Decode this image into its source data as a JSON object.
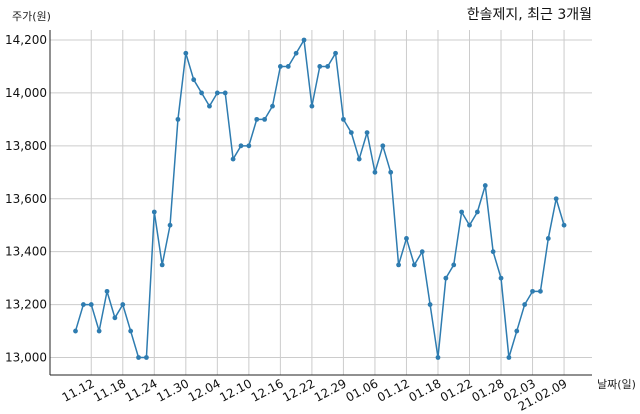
{
  "chart_data": {
    "type": "line",
    "title": "한솔제지, 최근 3개월",
    "ylabel": "주가(원)",
    "xlabel": "날짜(일)",
    "ylim": [
      12940,
      14270
    ],
    "yticks": [
      13000,
      13200,
      13400,
      13600,
      13800,
      14000,
      14200
    ],
    "ytick_labels": [
      "13,000",
      "13,200",
      "13,400",
      "13,600",
      "13,800",
      "14,000",
      "14,200"
    ],
    "xticks": [
      2,
      6,
      10,
      14,
      18,
      22,
      26,
      30,
      34,
      38,
      42,
      46,
      50,
      54,
      58,
      62
    ],
    "xtick_labels": [
      "11.12",
      "11.18",
      "11.24",
      "11.30",
      "12.04",
      "12.10",
      "12.16",
      "12.22",
      "12.29",
      "01.06",
      "01.12",
      "01.18",
      "01.22",
      "01.28",
      "02.03",
      "21.02.09"
    ],
    "grid": true,
    "color": "#2e7cb0",
    "values": [
      13100,
      13200,
      13200,
      13100,
      13250,
      13150,
      13200,
      13100,
      13000,
      13000,
      13550,
      13350,
      13500,
      13900,
      14150,
      14050,
      14000,
      13950,
      14000,
      14000,
      13750,
      13800,
      13800,
      13900,
      13900,
      13950,
      14100,
      14100,
      14150,
      14200,
      13950,
      14100,
      14100,
      14150,
      13900,
      13850,
      13750,
      13850,
      13700,
      13800,
      13700,
      13350,
      13450,
      13350,
      13400,
      13200,
      13000,
      13300,
      13350,
      13550,
      13500,
      13550,
      13650,
      13400,
      13300,
      13000,
      13100,
      13200,
      13250,
      13250,
      13450,
      13600,
      13500
    ]
  }
}
